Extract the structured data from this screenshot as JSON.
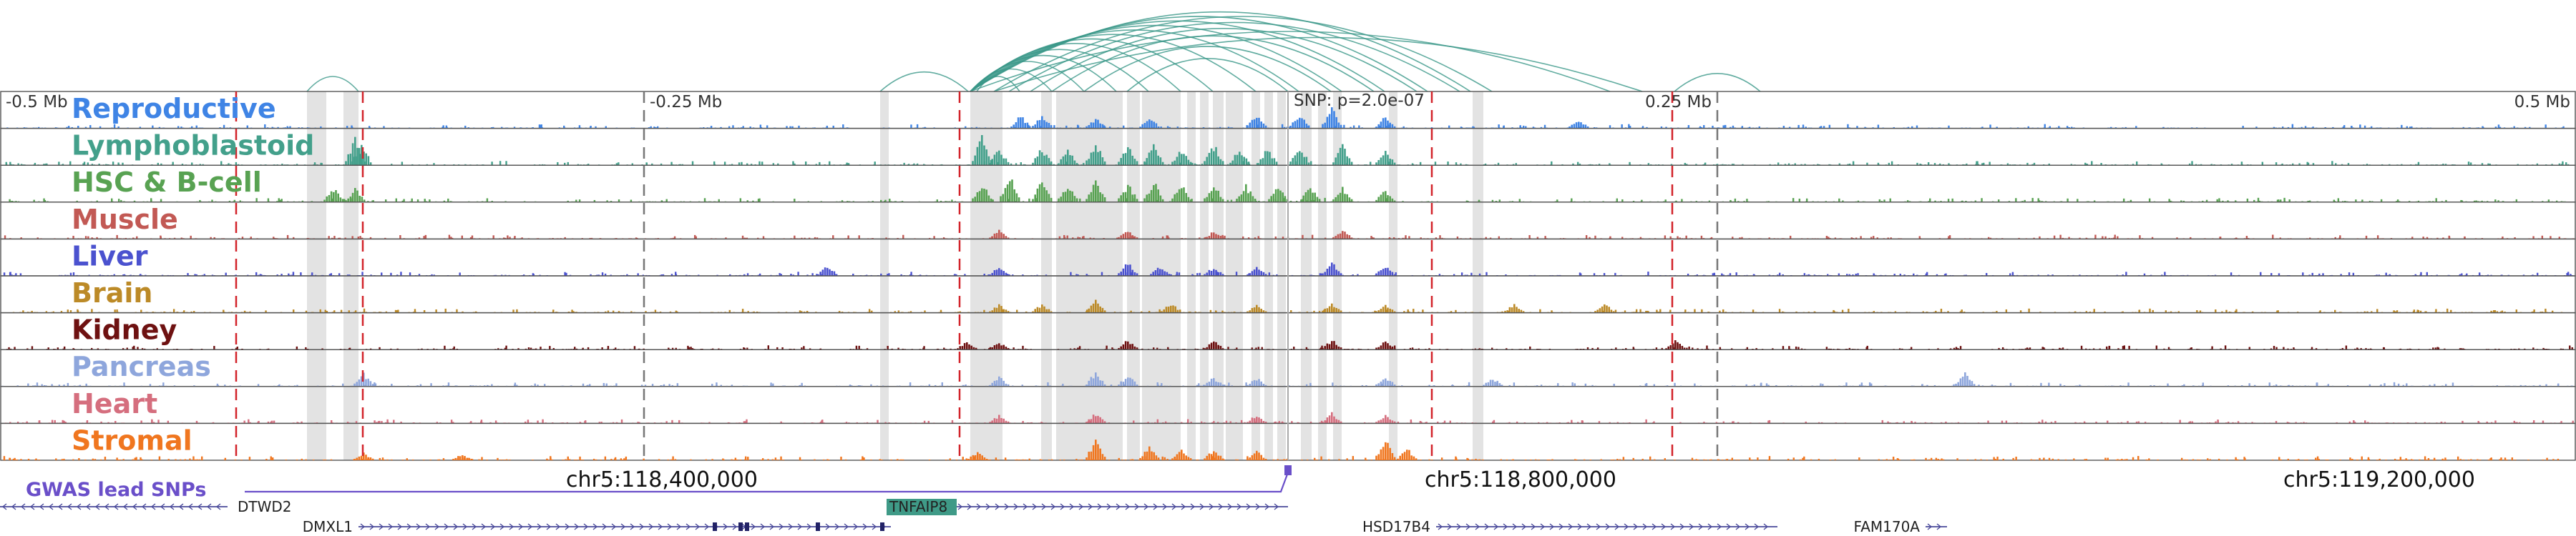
{
  "chart_data": {
    "type": "genome-browser-tracks",
    "x_range": [
      118115000,
      119315000
    ],
    "scale_labels": [
      {
        "text": "-0.5 Mb",
        "pos": 118115000,
        "anchor": "start"
      },
      {
        "text": "-0.25 Mb",
        "pos": 118415000,
        "anchor": "start"
      },
      {
        "text": "0.25 Mb",
        "pos": 118915000,
        "anchor": "end"
      },
      {
        "text": "0.5 Mb",
        "pos": 119315000,
        "anchor": "end"
      }
    ],
    "gray_dashed_lines": [
      118415000,
      118915000
    ],
    "red_dashed_lines": [
      118225000,
      118284000,
      118562000,
      118782000,
      118894000
    ],
    "snp_label": "SNP: p=2.0e-07",
    "snp_position": 118715000,
    "highlight_regions": [
      [
        118258000,
        118262000
      ],
      [
        118262000,
        118267000
      ],
      [
        118275000,
        118282000
      ],
      [
        118525000,
        118529000
      ],
      [
        118567000,
        118578000
      ],
      [
        118578000,
        118582000
      ],
      [
        118600000,
        118605000
      ],
      [
        118607000,
        118638000
      ],
      [
        118640000,
        118646000
      ],
      [
        118647000,
        118665000
      ],
      [
        118668000,
        118672000
      ],
      [
        118674000,
        118678000
      ],
      [
        118680000,
        118685000
      ],
      [
        118686000,
        118694000
      ],
      [
        118698000,
        118702000
      ],
      [
        118704000,
        118708000
      ],
      [
        118710000,
        118714000
      ],
      [
        118721000,
        118726000
      ],
      [
        118729000,
        118733000
      ],
      [
        118736000,
        118740000
      ],
      [
        118762000,
        118766000
      ],
      [
        118801000,
        118806000
      ]
    ],
    "loops": [
      {
        "a": 118258000,
        "b": 118282000,
        "h": 20
      },
      {
        "a": 118525000,
        "b": 118566000,
        "h": 26
      },
      {
        "a": 118567000,
        "b": 118800000,
        "h": 106
      },
      {
        "a": 118567000,
        "b": 118780000,
        "h": 100
      },
      {
        "a": 118567000,
        "b": 118760000,
        "h": 94
      },
      {
        "a": 118567000,
        "b": 118740000,
        "h": 88
      },
      {
        "a": 118567000,
        "b": 118720000,
        "h": 82
      },
      {
        "a": 118567000,
        "b": 118700000,
        "h": 76
      },
      {
        "a": 118567000,
        "b": 118680000,
        "h": 70
      },
      {
        "a": 118567000,
        "b": 118665000,
        "h": 64
      },
      {
        "a": 118567000,
        "b": 118650000,
        "h": 56
      },
      {
        "a": 118567000,
        "b": 118635000,
        "h": 48
      },
      {
        "a": 118567000,
        "b": 118620000,
        "h": 40
      },
      {
        "a": 118567000,
        "b": 118605000,
        "h": 30
      },
      {
        "a": 118570000,
        "b": 118590000,
        "h": 20
      },
      {
        "a": 118578000,
        "b": 118810000,
        "h": 100
      },
      {
        "a": 118585000,
        "b": 118795000,
        "h": 92
      },
      {
        "a": 118595000,
        "b": 118775000,
        "h": 84
      },
      {
        "a": 118605000,
        "b": 118755000,
        "h": 74
      },
      {
        "a": 118620000,
        "b": 118735000,
        "h": 60
      },
      {
        "a": 118640000,
        "b": 118715000,
        "h": 44
      },
      {
        "a": 118567000,
        "b": 118865000,
        "h": 80
      },
      {
        "a": 118578000,
        "b": 118880000,
        "h": 72
      },
      {
        "a": 118895000,
        "b": 118935000,
        "h": 24
      }
    ],
    "tracks": [
      {
        "label": "Reproductive",
        "color": "#3f84e5",
        "peaks": [
          [
            118590000,
            0.45
          ],
          [
            118600000,
            0.5
          ],
          [
            118625000,
            0.35
          ],
          [
            118650000,
            0.4
          ],
          [
            118700000,
            0.45
          ],
          [
            118720000,
            0.5
          ],
          [
            118735000,
            0.7
          ],
          [
            118760000,
            0.4
          ],
          [
            118850000,
            0.3
          ]
        ]
      },
      {
        "label": "Lymphoblastoid",
        "color": "#43a08b",
        "peaks": [
          [
            118280000,
            0.9
          ],
          [
            118283000,
            0.7
          ],
          [
            118572000,
            0.95
          ],
          [
            118580000,
            0.55
          ],
          [
            118600000,
            0.6
          ],
          [
            118612000,
            0.5
          ],
          [
            118625000,
            0.75
          ],
          [
            118640000,
            0.65
          ],
          [
            118652000,
            0.8
          ],
          [
            118665000,
            0.55
          ],
          [
            118680000,
            0.7
          ],
          [
            118692000,
            0.6
          ],
          [
            118705000,
            0.55
          ],
          [
            118720000,
            0.65
          ],
          [
            118740000,
            0.7
          ],
          [
            118760000,
            0.45
          ]
        ]
      },
      {
        "label": "HSC & B-cell",
        "color": "#58a252",
        "peaks": [
          [
            118270000,
            0.5
          ],
          [
            118280000,
            0.45
          ],
          [
            118572000,
            0.65
          ],
          [
            118585000,
            0.95
          ],
          [
            118600000,
            0.7
          ],
          [
            118612000,
            0.6
          ],
          [
            118625000,
            0.75
          ],
          [
            118640000,
            0.6
          ],
          [
            118652000,
            0.7
          ],
          [
            118665000,
            0.6
          ],
          [
            118680000,
            0.65
          ],
          [
            118695000,
            0.55
          ],
          [
            118710000,
            0.5
          ],
          [
            118725000,
            0.6
          ],
          [
            118740000,
            0.5
          ],
          [
            118760000,
            0.4
          ]
        ]
      },
      {
        "label": "Muscle",
        "color": "#c25954",
        "peaks": [
          [
            118580000,
            0.3
          ],
          [
            118640000,
            0.3
          ],
          [
            118680000,
            0.25
          ],
          [
            118740000,
            0.3
          ]
        ]
      },
      {
        "label": "Liver",
        "color": "#4b52cf",
        "peaks": [
          [
            118500000,
            0.35
          ],
          [
            118580000,
            0.3
          ],
          [
            118640000,
            0.45
          ],
          [
            118655000,
            0.35
          ],
          [
            118680000,
            0.3
          ],
          [
            118700000,
            0.3
          ],
          [
            118735000,
            0.5
          ],
          [
            118760000,
            0.4
          ]
        ]
      },
      {
        "label": "Brain",
        "color": "#bc8a27",
        "peaks": [
          [
            118580000,
            0.3
          ],
          [
            118600000,
            0.3
          ],
          [
            118625000,
            0.4
          ],
          [
            118660000,
            0.35
          ],
          [
            118700000,
            0.3
          ],
          [
            118735000,
            0.35
          ],
          [
            118760000,
            0.25
          ],
          [
            118820000,
            0.3
          ],
          [
            118862000,
            0.35
          ]
        ]
      },
      {
        "label": "Kidney",
        "color": "#6e1111",
        "peaks": [
          [
            118565000,
            0.3
          ],
          [
            118580000,
            0.25
          ],
          [
            118640000,
            0.35
          ],
          [
            118680000,
            0.3
          ],
          [
            118735000,
            0.35
          ],
          [
            118760000,
            0.3
          ],
          [
            118895000,
            0.3
          ]
        ]
      },
      {
        "label": "Pancreas",
        "color": "#8ea6dc",
        "peaks": [
          [
            118284000,
            0.45
          ],
          [
            118580000,
            0.35
          ],
          [
            118625000,
            0.5
          ],
          [
            118640000,
            0.4
          ],
          [
            118680000,
            0.3
          ],
          [
            118700000,
            0.3
          ],
          [
            118760000,
            0.35
          ],
          [
            118810000,
            0.3
          ],
          [
            119030000,
            0.55
          ]
        ]
      },
      {
        "label": "Heart",
        "color": "#d56e7e",
        "peaks": [
          [
            118580000,
            0.3
          ],
          [
            118625000,
            0.35
          ],
          [
            118700000,
            0.3
          ],
          [
            118735000,
            0.35
          ],
          [
            118760000,
            0.3
          ]
        ]
      },
      {
        "label": "Stromal",
        "color": "#f0761f",
        "peaks": [
          [
            118284000,
            0.25
          ],
          [
            118330000,
            0.2
          ],
          [
            118570000,
            0.3
          ],
          [
            118625000,
            0.7
          ],
          [
            118650000,
            0.5
          ],
          [
            118665000,
            0.4
          ],
          [
            118680000,
            0.35
          ],
          [
            118700000,
            0.3
          ],
          [
            118760000,
            0.75
          ],
          [
            118770000,
            0.4
          ]
        ]
      }
    ],
    "gwas": {
      "label": "GWAS lead SNPs",
      "snp_pos": 118715000,
      "color": "#6a4fc9"
    },
    "coordinates": [
      {
        "text": "chr5:118,400,000",
        "pos": 118400000
      },
      {
        "text": "chr5:118,800,000",
        "pos": 118800000
      },
      {
        "text": "chr5:119,200,000",
        "pos": 119200000
      }
    ],
    "genes": [
      {
        "name": "DTWD2",
        "start": 118115000,
        "end": 118221000,
        "strand": "-",
        "row": 0,
        "label_side": "right",
        "exons": []
      },
      {
        "name": "TNFAIP8",
        "start": 118530000,
        "end": 118715000,
        "strand": "+",
        "row": 0,
        "label_side": "start-box",
        "exons": []
      },
      {
        "name": "DMXL1",
        "start": 118282000,
        "end": 118530000,
        "strand": "+",
        "row": 1,
        "label_side": "left",
        "exons": [
          118448000,
          118460000,
          118463000,
          118496000,
          118526000
        ]
      },
      {
        "name": "HSD17B4",
        "start": 118784000,
        "end": 118943000,
        "strand": "+",
        "row": 1,
        "label_side": "left",
        "exons": []
      },
      {
        "name": "FAM170A",
        "start": 119012000,
        "end": 119022000,
        "strand": "+",
        "row": 1,
        "label_side": "left",
        "exons": []
      }
    ]
  }
}
